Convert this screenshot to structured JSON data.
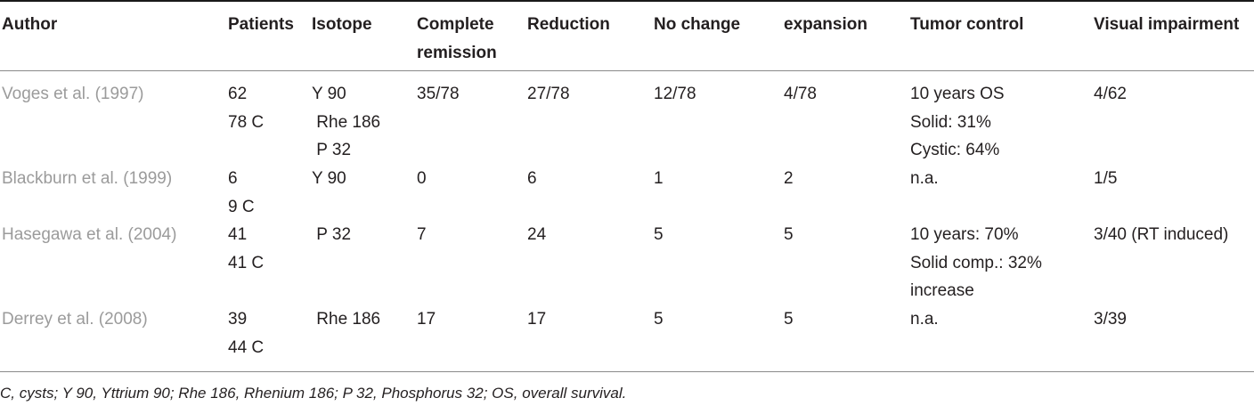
{
  "table": {
    "headers": [
      [
        "Author"
      ],
      [
        "Patients"
      ],
      [
        "Isotope"
      ],
      [
        "Complete",
        "remission"
      ],
      [
        "Reduction"
      ],
      [
        "No change"
      ],
      [
        "expansion"
      ],
      [
        "Tumor control"
      ],
      [
        "Visual impairment"
      ]
    ],
    "rows": [
      [
        [
          "Voges et al. (1997)"
        ],
        [
          "62",
          "78 C"
        ],
        [
          "Y 90",
          " Rhe 186",
          " P 32"
        ],
        [
          "35/78"
        ],
        [
          "27/78"
        ],
        [
          "12/78"
        ],
        [
          "4/78"
        ],
        [
          "10 years OS",
          "Solid: 31%",
          "Cystic: 64%"
        ],
        [
          "4/62"
        ]
      ],
      [
        [
          "Blackburn et al. (1999)"
        ],
        [
          "6",
          "9 C"
        ],
        [
          "Y 90"
        ],
        [
          "0"
        ],
        [
          "6"
        ],
        [
          "1"
        ],
        [
          "2"
        ],
        [
          "n.a."
        ],
        [
          "1/5"
        ]
      ],
      [
        [
          "Hasegawa et al. (2004)"
        ],
        [
          "41",
          "41 C"
        ],
        [
          " P 32"
        ],
        [
          "7"
        ],
        [
          "24"
        ],
        [
          "5"
        ],
        [
          "5"
        ],
        [
          "10 years: 70%",
          "Solid comp.: 32%",
          "increase"
        ],
        [
          "3/40 (RT induced)"
        ]
      ],
      [
        [
          "Derrey et al. (2008)"
        ],
        [
          "39",
          "44 C"
        ],
        [
          " Rhe 186"
        ],
        [
          "17"
        ],
        [
          "17"
        ],
        [
          "5"
        ],
        [
          "5"
        ],
        [
          "n.a."
        ],
        [
          "3/39"
        ]
      ]
    ]
  },
  "footnote": "C, cysts; Y 90, Yttrium 90; Rhe 186, Rhenium 186; P 32, Phosphorus 32; OS, overall survival."
}
